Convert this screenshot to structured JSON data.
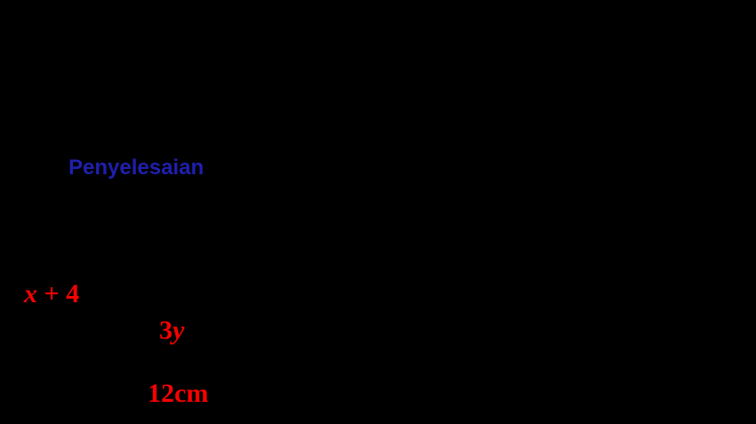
{
  "canvas": {
    "background_color": "#000000"
  },
  "heading": {
    "text": "Penyelesaian",
    "color": "#1f1fae"
  },
  "diagram": {
    "label_color": "#fa0000",
    "side_left": {
      "variable": "x",
      "suffix": " + 4"
    },
    "side_right": {
      "coefficient": "3",
      "variable": "y"
    },
    "base": {
      "text": "12cm"
    }
  }
}
